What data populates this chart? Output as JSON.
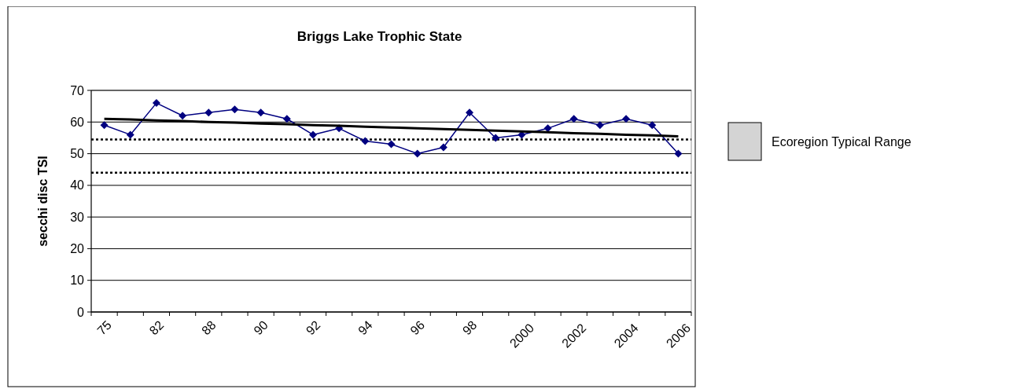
{
  "chart_data": {
    "type": "line",
    "title": "Briggs Lake Trophic State",
    "ylabel": "secchi disc TSI",
    "categories": [
      "75",
      null,
      "82",
      null,
      "88",
      null,
      "90",
      null,
      "92",
      null,
      "94",
      null,
      "96",
      null,
      "98",
      null,
      "2000",
      null,
      "2002",
      null,
      "2004",
      null,
      "2006"
    ],
    "series": [
      {
        "color": "#000080",
        "marker": "diamond",
        "values": [
          59,
          56,
          66,
          62,
          63,
          64,
          63,
          61,
          56,
          58,
          54,
          53,
          50,
          52,
          63,
          55,
          56,
          58,
          61,
          59,
          61,
          59,
          50
        ]
      },
      {
        "color": "#000000",
        "marker": "none",
        "values": [
          61,
          60.8,
          60.5,
          60.3,
          60,
          59.8,
          59.5,
          59.3,
          59,
          58.8,
          58.5,
          58.3,
          58,
          57.8,
          57.5,
          57.3,
          57,
          56.8,
          56.5,
          56.3,
          56,
          55.8,
          55.5
        ]
      }
    ],
    "ref_lines": [
      {
        "axis": "y",
        "value": 44,
        "color": "#000000",
        "line_style": "dotted"
      },
      {
        "axis": "y",
        "value": 54.5,
        "color": "#000000",
        "line_style": "dotted"
      }
    ],
    "annotations": [
      "Ecoregion Typical Range"
    ],
    "ylim": [
      0,
      70
    ],
    "yticks": [
      0,
      10,
      20,
      30,
      40,
      50,
      60,
      70
    ],
    "grid": "y"
  }
}
